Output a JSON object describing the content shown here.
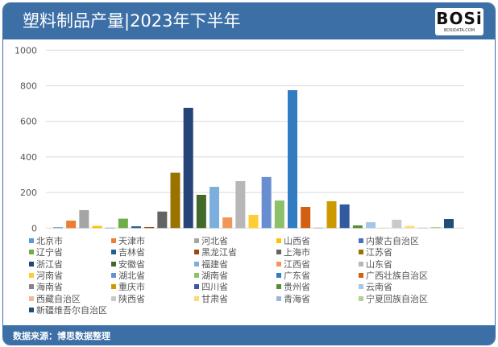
{
  "header": {
    "title": "塑料制品产量|2023年下半年",
    "logo_text": "BOSi",
    "logo_sub": "BOSIDATA.COM"
  },
  "footer": {
    "source": "数据来源：博思数据整理"
  },
  "chart_data": {
    "type": "bar",
    "title": "塑料制品产量|2023年下半年",
    "ylim": [
      0,
      1000
    ],
    "yticks": [
      "0",
      "200",
      "400",
      "600",
      "800",
      "1000"
    ],
    "grid": true,
    "legend_position": "bottom",
    "series": [
      {
        "name": "北京市",
        "value": 5,
        "color": "#5b9bd5"
      },
      {
        "name": "天津市",
        "value": 42,
        "color": "#ed7d31"
      },
      {
        "name": "河北省",
        "value": 101,
        "color": "#a5a5a5"
      },
      {
        "name": "山西省",
        "value": 12,
        "color": "#ffc000"
      },
      {
        "name": "内蒙古自治区",
        "value": 2,
        "color": "#4472c4"
      },
      {
        "name": "辽宁省",
        "value": 53,
        "color": "#70ad47"
      },
      {
        "name": "吉林省",
        "value": 10,
        "color": "#255e91"
      },
      {
        "name": "黑龙江省",
        "value": 6,
        "color": "#9e480e"
      },
      {
        "name": "上海市",
        "value": 93,
        "color": "#636363"
      },
      {
        "name": "江苏省",
        "value": 311,
        "color": "#997300"
      },
      {
        "name": "浙江省",
        "value": 676,
        "color": "#264478"
      },
      {
        "name": "安徽省",
        "value": 187,
        "color": "#43682b"
      },
      {
        "name": "福建省",
        "value": 232,
        "color": "#7cafdd"
      },
      {
        "name": "江西省",
        "value": 60,
        "color": "#f1975a"
      },
      {
        "name": "山东省",
        "value": 264,
        "color": "#b7b7b7"
      },
      {
        "name": "河南省",
        "value": 74,
        "color": "#ffcd33"
      },
      {
        "name": "湖北省",
        "value": 287,
        "color": "#698ed0"
      },
      {
        "name": "湖南省",
        "value": 155,
        "color": "#8cc168"
      },
      {
        "name": "广东省",
        "value": 775,
        "color": "#327dc2"
      },
      {
        "name": "广西壮族自治区",
        "value": 119,
        "color": "#d26012"
      },
      {
        "name": "海南省",
        "value": 2,
        "color": "#848484"
      },
      {
        "name": "重庆市",
        "value": 151,
        "color": "#cc9a00"
      },
      {
        "name": "四川省",
        "value": 133,
        "color": "#335aa1"
      },
      {
        "name": "贵州省",
        "value": 15,
        "color": "#5a8a39"
      },
      {
        "name": "云南省",
        "value": 33,
        "color": "#a3c7e8"
      },
      {
        "name": "西藏自治区",
        "value": 1,
        "color": "#f5b895"
      },
      {
        "name": "陕西省",
        "value": 47,
        "color": "#c9c9c9"
      },
      {
        "name": "甘肃省",
        "value": 12,
        "color": "#ffda70"
      },
      {
        "name": "青海省",
        "value": 2,
        "color": "#9cb4e0"
      },
      {
        "name": "宁夏回族自治区",
        "value": 6,
        "color": "#add394"
      },
      {
        "name": "新疆维吾尔自治区",
        "value": 51,
        "color": "#1f4e79"
      }
    ]
  }
}
